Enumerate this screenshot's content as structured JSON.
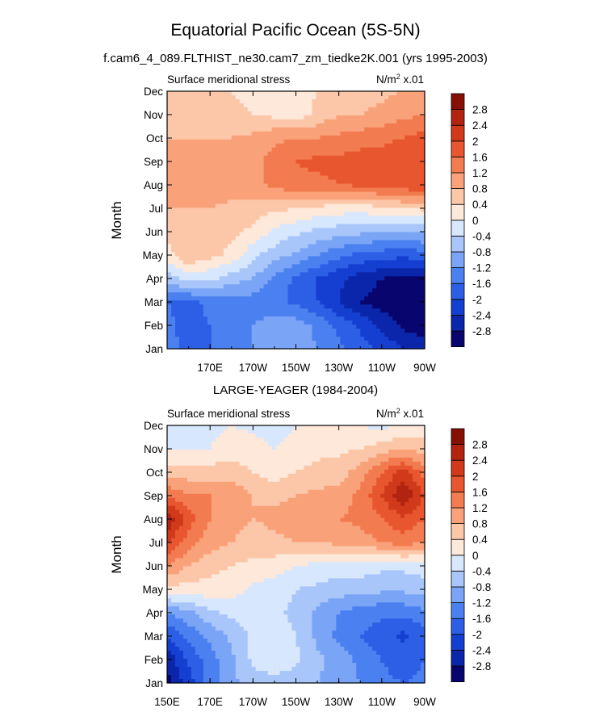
{
  "figure": {
    "title": "Equatorial Pacific Ocean (5S-5N)",
    "subtitle": "f.cam6_4_089.FLTHIST_ne30.cam7_zm_tiedke2K.001 (yrs 1995-2003)"
  },
  "colors": {
    "levels": [
      -3.0,
      -2.8,
      -2.4,
      -2.0,
      -1.6,
      -1.2,
      -0.8,
      -0.4,
      0,
      0.4,
      0.8,
      1.2,
      1.6,
      2.0,
      2.4,
      2.8,
      3.0
    ],
    "palette": [
      "#08056e",
      "#0b26aa",
      "#153fd0",
      "#2d5fe6",
      "#4b80f0",
      "#7aa4f5",
      "#a9c6fa",
      "#d7e7fd",
      "#fde8da",
      "#fcc7a8",
      "#f9a27a",
      "#f37b50",
      "#e85630",
      "#d03a1b",
      "#b22410",
      "#861003"
    ]
  },
  "chart_data": [
    {
      "type": "heatmap",
      "title": "",
      "left_label": "Surface meridional stress",
      "units_label": "N/m² x.01",
      "units_base": "N/m",
      "units_exp": "2",
      "units_scale": " x.01",
      "xlabel": "",
      "ylabel": "Month",
      "xlim": [
        150,
        270
      ],
      "ylim": [
        0,
        11
      ],
      "xticks": [
        {
          "v": 170,
          "label": "170E"
        },
        {
          "v": 190,
          "label": "170W"
        },
        {
          "v": 210,
          "label": "150W"
        },
        {
          "v": 230,
          "label": "130W"
        },
        {
          "v": 250,
          "label": "110W"
        },
        {
          "v": 270,
          "label": "90W"
        }
      ],
      "yticks": [
        "Jan",
        "Feb",
        "Mar",
        "Apr",
        "May",
        "Jun",
        "Jul",
        "Aug",
        "Sep",
        "Oct",
        "Nov",
        "Dec"
      ],
      "colorbar_labels": [
        "-2.8",
        "-2.4",
        "-2",
        "-1.6",
        "-1.2",
        "-0.8",
        "-0.4",
        "0",
        "0.4",
        "0.8",
        "1.2",
        "1.6",
        "2",
        "2.4",
        "2.8"
      ],
      "lon": [
        150,
        160,
        170,
        180,
        190,
        200,
        210,
        220,
        230,
        240,
        250,
        260,
        270
      ],
      "months": [
        "Jan",
        "Feb",
        "Mar",
        "Apr",
        "May",
        "Jun",
        "Jul",
        "Aug",
        "Sep",
        "Oct",
        "Nov",
        "Dec"
      ],
      "values": [
        [
          -1.4,
          -1.7,
          -1.6,
          -1.3,
          -1.2,
          -1.1,
          -1.0,
          -1.2,
          -1.5,
          -1.8,
          -2.1,
          -2.4,
          -2.6
        ],
        [
          -1.5,
          -1.8,
          -1.6,
          -1.3,
          -1.2,
          -1.0,
          -1.0,
          -1.3,
          -1.7,
          -2.1,
          -2.5,
          -2.9,
          -3.0
        ],
        [
          -1.6,
          -1.7,
          -1.5,
          -1.4,
          -1.4,
          -1.5,
          -1.7,
          -2.0,
          -2.4,
          -2.8,
          -3.0,
          -3.1,
          -3.0
        ],
        [
          -0.6,
          -0.2,
          -0.3,
          -0.6,
          -0.8,
          -1.3,
          -1.7,
          -2.0,
          -2.3,
          -2.6,
          -2.8,
          -2.9,
          -2.8
        ],
        [
          0.2,
          0.8,
          0.5,
          0.3,
          -0.3,
          -0.6,
          -0.9,
          -1.2,
          -1.5,
          -1.7,
          -1.8,
          -1.9,
          -1.8
        ],
        [
          0.6,
          0.8,
          0.7,
          0.5,
          0.3,
          -0.1,
          -0.3,
          -0.5,
          -0.6,
          -0.7,
          -0.8,
          -0.8,
          -0.7
        ],
        [
          0.8,
          0.8,
          0.8,
          0.7,
          0.6,
          0.5,
          0.4,
          0.3,
          0.2,
          0.2,
          0.3,
          0.4,
          0.5
        ],
        [
          1.0,
          1.0,
          1.0,
          1.0,
          1.1,
          1.3,
          1.5,
          1.5,
          1.6,
          1.7,
          1.8,
          1.9,
          2.0
        ],
        [
          1.0,
          1.0,
          1.0,
          1.0,
          1.0,
          1.4,
          1.6,
          1.7,
          1.7,
          1.8,
          1.8,
          1.9,
          2.0
        ],
        [
          0.8,
          0.8,
          0.8,
          0.8,
          0.9,
          1.1,
          1.2,
          1.2,
          1.3,
          1.4,
          1.5,
          1.6,
          1.8
        ],
        [
          0.5,
          0.5,
          0.5,
          0.5,
          0.4,
          0.3,
          0.2,
          0.5,
          0.8,
          0.8,
          0.9,
          1.1,
          1.2
        ],
        [
          0.7,
          0.6,
          0.6,
          0.4,
          0.3,
          0.2,
          0.2,
          0.4,
          0.6,
          0.6,
          0.7,
          0.8,
          0.9
        ]
      ]
    },
    {
      "type": "heatmap",
      "title": "LARGE-YEAGER (1984-2004)",
      "left_label": "Surface meridional stress",
      "units_label": "N/m² x.01",
      "units_base": "N/m",
      "units_exp": "2",
      "units_scale": " x.01",
      "xlabel": "",
      "ylabel": "Month",
      "xlim": [
        150,
        270
      ],
      "ylim": [
        0,
        11
      ],
      "xticks": [
        {
          "v": 150,
          "label": "150E"
        },
        {
          "v": 170,
          "label": "170E"
        },
        {
          "v": 190,
          "label": "170W"
        },
        {
          "v": 210,
          "label": "150W"
        },
        {
          "v": 230,
          "label": "130W"
        },
        {
          "v": 250,
          "label": "110W"
        },
        {
          "v": 270,
          "label": "90W"
        }
      ],
      "yticks": [
        "Jan",
        "Feb",
        "Mar",
        "Apr",
        "May",
        "Jun",
        "Jul",
        "Aug",
        "Sep",
        "Oct",
        "Nov",
        "Dec"
      ],
      "colorbar_labels": [
        "-2.8",
        "-2.4",
        "-2",
        "-1.6",
        "-1.2",
        "-0.8",
        "-0.4",
        "0",
        "0.4",
        "0.8",
        "1.2",
        "1.6",
        "2",
        "2.4",
        "2.8"
      ],
      "lon": [
        150,
        160,
        170,
        180,
        190,
        200,
        210,
        220,
        230,
        240,
        250,
        260,
        270
      ],
      "months": [
        "Jan",
        "Feb",
        "Mar",
        "Apr",
        "May",
        "Jun",
        "Jul",
        "Aug",
        "Sep",
        "Oct",
        "Nov",
        "Dec"
      ],
      "values": [
        [
          -3.0,
          -2.2,
          -1.4,
          -0.9,
          -0.6,
          -0.5,
          -0.6,
          -0.8,
          -1.0,
          -1.2,
          -1.5,
          -1.6,
          -1.5
        ],
        [
          -2.7,
          -1.9,
          -1.4,
          -0.9,
          -0.3,
          -0.2,
          -0.3,
          -0.7,
          -1.0,
          -1.3,
          -1.6,
          -1.8,
          -1.6
        ],
        [
          -2.0,
          -1.5,
          -1.1,
          -0.7,
          -0.3,
          -0.2,
          -0.4,
          -0.9,
          -1.3,
          -1.6,
          -1.8,
          -2.1,
          -1.8
        ],
        [
          -1.2,
          -0.9,
          -0.5,
          -0.3,
          -0.2,
          -0.3,
          -0.5,
          -0.9,
          -1.2,
          -1.4,
          -1.5,
          -1.5,
          -1.3
        ],
        [
          0.3,
          0.2,
          0.3,
          0.2,
          -0.1,
          -0.2,
          -0.4,
          -0.5,
          -0.6,
          -0.6,
          -0.7,
          -0.7,
          -0.6
        ],
        [
          1.2,
          0.8,
          0.5,
          0.4,
          0.3,
          0.2,
          0.0,
          -0.1,
          -0.2,
          -0.2,
          -0.3,
          -0.3,
          -0.2
        ],
        [
          2.0,
          1.4,
          1.0,
          0.8,
          0.6,
          0.7,
          0.8,
          0.8,
          0.9,
          1.0,
          1.2,
          1.4,
          1.2
        ],
        [
          2.8,
          1.8,
          1.2,
          1.0,
          0.8,
          0.9,
          1.0,
          1.1,
          1.2,
          1.3,
          1.6,
          1.9,
          1.6
        ],
        [
          1.6,
          1.2,
          1.2,
          1.1,
          0.8,
          0.7,
          0.8,
          0.9,
          1.0,
          1.3,
          2.0,
          2.8,
          2.0
        ],
        [
          0.6,
          0.6,
          0.6,
          0.6,
          0.4,
          0.2,
          0.4,
          0.5,
          0.6,
          1.0,
          1.6,
          2.2,
          1.4
        ],
        [
          0.0,
          0.0,
          0.0,
          0.2,
          0.2,
          0.0,
          0.2,
          0.3,
          0.3,
          0.4,
          0.6,
          0.8,
          0.6
        ],
        [
          -0.2,
          -0.2,
          -0.1,
          0.0,
          -0.1,
          -0.2,
          0.0,
          0.1,
          0.1,
          0.0,
          -0.1,
          0.0,
          0.1
        ]
      ]
    }
  ]
}
